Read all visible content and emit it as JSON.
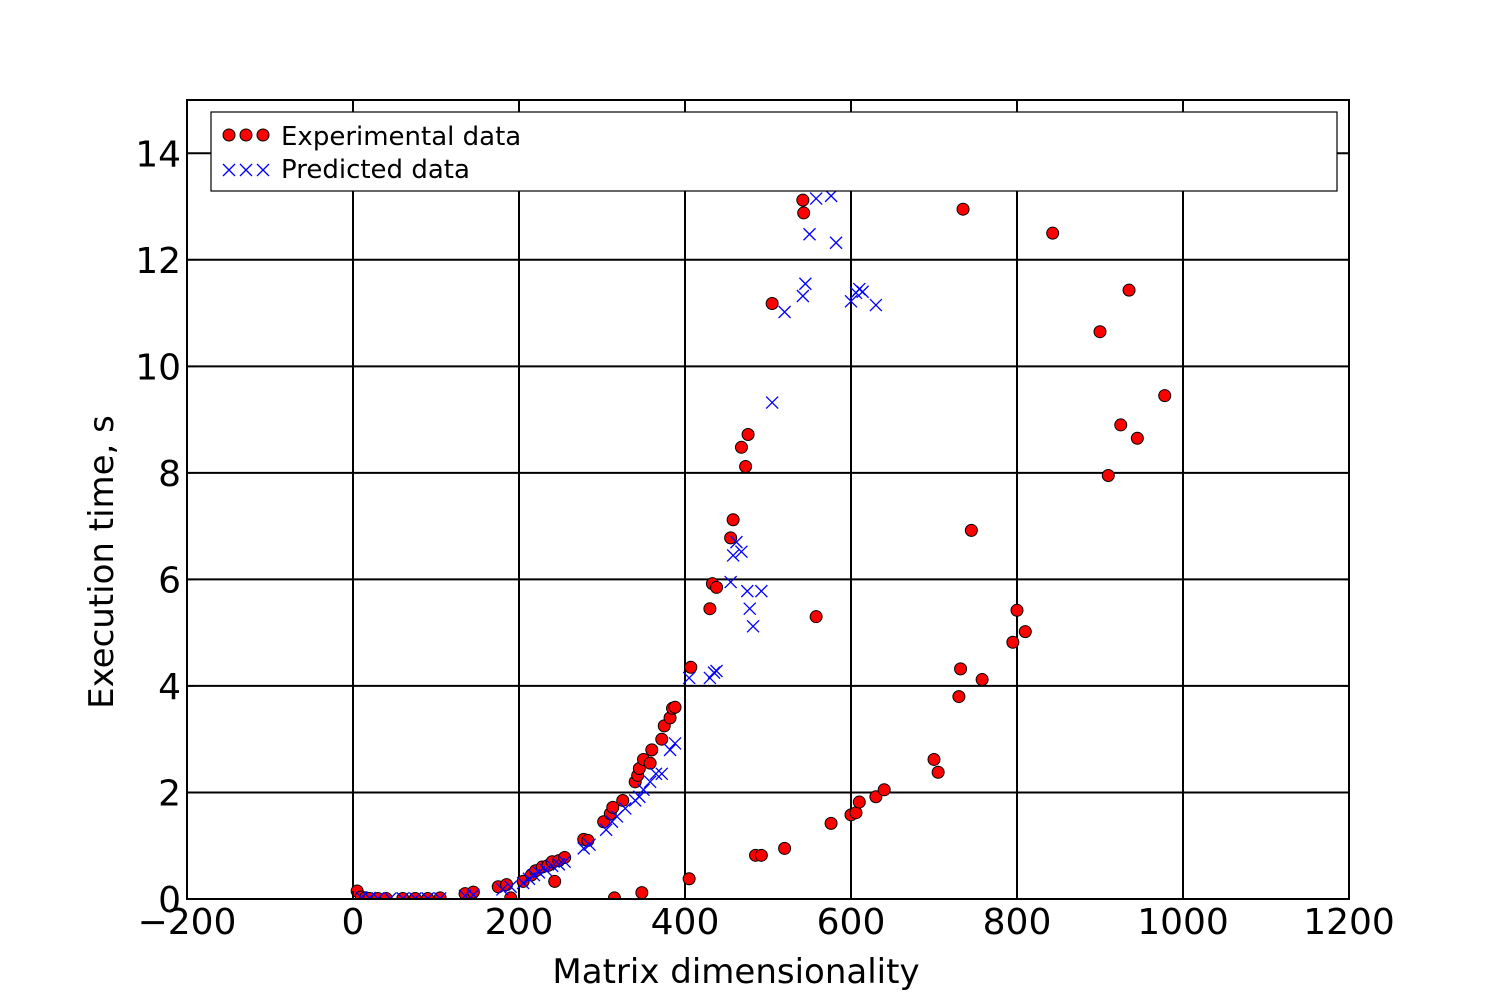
{
  "chart_data": {
    "type": "scatter",
    "xlabel": "Matrix dimensionality",
    "ylabel": "Execution time, s",
    "xlim": [
      -200,
      1200
    ],
    "ylim": [
      0,
      15
    ],
    "x_ticks": [
      -200,
      0,
      200,
      400,
      600,
      800,
      1000,
      1200
    ],
    "y_ticks": [
      0,
      2,
      4,
      6,
      8,
      10,
      12,
      14
    ],
    "x_tick_labels": [
      "−200",
      "0",
      "200",
      "400",
      "600",
      "800",
      "1000",
      "1200"
    ],
    "y_tick_labels": [
      "0",
      "2",
      "4",
      "6",
      "8",
      "10",
      "12",
      "14"
    ],
    "grid": true,
    "legend_position": "top",
    "series": [
      {
        "name": "Experimental data",
        "marker": "circle",
        "color": "#ff0000",
        "edge_color": "#000000",
        "points": [
          [
            5,
            0.15
          ],
          [
            10,
            0.04
          ],
          [
            15,
            0.02
          ],
          [
            20,
            0.01
          ],
          [
            30,
            0.01
          ],
          [
            40,
            0.01
          ],
          [
            60,
            0.01
          ],
          [
            75,
            0.01
          ],
          [
            90,
            0.01
          ],
          [
            105,
            0.02
          ],
          [
            135,
            0.1
          ],
          [
            145,
            0.13
          ],
          [
            175,
            0.23
          ],
          [
            185,
            0.27
          ],
          [
            190,
            0.02
          ],
          [
            205,
            0.33
          ],
          [
            215,
            0.45
          ],
          [
            220,
            0.53
          ],
          [
            228,
            0.6
          ],
          [
            235,
            0.63
          ],
          [
            240,
            0.7
          ],
          [
            243,
            0.33
          ],
          [
            248,
            0.72
          ],
          [
            255,
            0.78
          ],
          [
            278,
            1.12
          ],
          [
            283,
            1.1
          ],
          [
            302,
            1.45
          ],
          [
            310,
            1.6
          ],
          [
            313,
            1.72
          ],
          [
            315,
            0.02
          ],
          [
            325,
            1.85
          ],
          [
            340,
            2.2
          ],
          [
            343,
            2.32
          ],
          [
            345,
            2.45
          ],
          [
            348,
            0.12
          ],
          [
            350,
            2.62
          ],
          [
            358,
            2.55
          ],
          [
            360,
            2.8
          ],
          [
            372,
            3.0
          ],
          [
            375,
            3.25
          ],
          [
            382,
            3.4
          ],
          [
            385,
            3.58
          ],
          [
            388,
            3.6
          ],
          [
            405,
            0.38
          ],
          [
            407,
            4.35
          ],
          [
            430,
            5.45
          ],
          [
            433,
            5.92
          ],
          [
            438,
            5.85
          ],
          [
            455,
            6.78
          ],
          [
            458,
            7.12
          ],
          [
            468,
            8.48
          ],
          [
            473,
            8.12
          ],
          [
            476,
            8.72
          ],
          [
            485,
            0.82
          ],
          [
            492,
            0.82
          ],
          [
            505,
            11.18
          ],
          [
            520,
            0.95
          ],
          [
            542,
            13.12
          ],
          [
            543,
            12.88
          ],
          [
            558,
            5.3
          ],
          [
            576,
            1.42
          ],
          [
            600,
            1.58
          ],
          [
            606,
            1.62
          ],
          [
            610,
            1.82
          ],
          [
            630,
            1.92
          ],
          [
            640,
            2.05
          ],
          [
            700,
            2.62
          ],
          [
            705,
            2.38
          ],
          [
            730,
            3.8
          ],
          [
            732,
            4.32
          ],
          [
            735,
            12.95
          ],
          [
            745,
            6.92
          ],
          [
            758,
            4.12
          ],
          [
            795,
            4.82
          ],
          [
            800,
            5.42
          ],
          [
            810,
            5.02
          ],
          [
            843,
            12.5
          ],
          [
            900,
            10.65
          ],
          [
            910,
            7.95
          ],
          [
            925,
            8.9
          ],
          [
            935,
            11.43
          ],
          [
            945,
            8.65
          ],
          [
            978,
            9.45
          ]
        ]
      },
      {
        "name": "Predicted data",
        "marker": "x",
        "color": "#0000ff",
        "points": [
          [
            10,
            0.03
          ],
          [
            20,
            0.02
          ],
          [
            30,
            0.01
          ],
          [
            45,
            0.01
          ],
          [
            60,
            0.01
          ],
          [
            75,
            0.01
          ],
          [
            90,
            0.01
          ],
          [
            105,
            0.01
          ],
          [
            135,
            0.06
          ],
          [
            145,
            0.08
          ],
          [
            180,
            0.18
          ],
          [
            190,
            0.23
          ],
          [
            205,
            0.3
          ],
          [
            212,
            0.38
          ],
          [
            218,
            0.45
          ],
          [
            224,
            0.5
          ],
          [
            232,
            0.55
          ],
          [
            240,
            0.62
          ],
          [
            248,
            0.65
          ],
          [
            255,
            0.7
          ],
          [
            278,
            0.95
          ],
          [
            285,
            1.02
          ],
          [
            305,
            1.3
          ],
          [
            312,
            1.45
          ],
          [
            318,
            1.55
          ],
          [
            328,
            1.7
          ],
          [
            340,
            1.85
          ],
          [
            345,
            1.92
          ],
          [
            350,
            2.05
          ],
          [
            358,
            2.2
          ],
          [
            365,
            2.35
          ],
          [
            372,
            2.35
          ],
          [
            382,
            2.8
          ],
          [
            388,
            2.92
          ],
          [
            405,
            4.15
          ],
          [
            430,
            4.15
          ],
          [
            435,
            4.25
          ],
          [
            438,
            4.28
          ],
          [
            455,
            5.95
          ],
          [
            458,
            6.45
          ],
          [
            462,
            6.7
          ],
          [
            468,
            6.52
          ],
          [
            475,
            5.78
          ],
          [
            478,
            5.45
          ],
          [
            482,
            5.12
          ],
          [
            492,
            5.78
          ],
          [
            505,
            9.32
          ],
          [
            520,
            11.02
          ],
          [
            542,
            11.32
          ],
          [
            545,
            11.55
          ],
          [
            550,
            12.48
          ],
          [
            558,
            13.15
          ],
          [
            576,
            13.2
          ],
          [
            582,
            12.32
          ],
          [
            600,
            11.22
          ],
          [
            606,
            11.38
          ],
          [
            610,
            11.45
          ],
          [
            614,
            11.4
          ],
          [
            630,
            11.15
          ]
        ]
      }
    ]
  }
}
